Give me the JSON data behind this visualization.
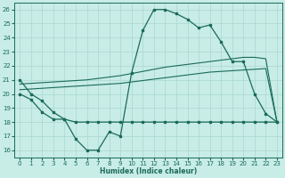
{
  "xlabel": "Humidex (Indice chaleur)",
  "xlim": [
    -0.5,
    23.5
  ],
  "ylim": [
    15.5,
    26.5
  ],
  "xticks": [
    0,
    1,
    2,
    3,
    4,
    5,
    6,
    7,
    8,
    9,
    10,
    11,
    12,
    13,
    14,
    15,
    16,
    17,
    18,
    19,
    20,
    21,
    22,
    23
  ],
  "yticks": [
    16,
    17,
    18,
    19,
    20,
    21,
    22,
    23,
    24,
    25,
    26
  ],
  "bg_color": "#c8ece6",
  "line_color": "#1a6b5a",
  "grid_color": "#a8d8d0",
  "line1_x": [
    0,
    1,
    2,
    3,
    4,
    5,
    6,
    7,
    8,
    9,
    10,
    11,
    12,
    13,
    14,
    15,
    16,
    17,
    18,
    19,
    20,
    21,
    22,
    23
  ],
  "line1_y": [
    21.0,
    20.0,
    19.5,
    18.7,
    18.2,
    16.8,
    16.0,
    16.0,
    17.3,
    17.0,
    21.5,
    24.5,
    26.0,
    26.0,
    25.7,
    25.3,
    24.7,
    24.9,
    23.7,
    22.3,
    22.3,
    20.0,
    18.6,
    18.0
  ],
  "line2_x": [
    0,
    1,
    2,
    3,
    4,
    5,
    6,
    7,
    8,
    9,
    10,
    11,
    12,
    13,
    14,
    15,
    16,
    17,
    18,
    19,
    20,
    21,
    22,
    23
  ],
  "line2_y": [
    20.0,
    19.6,
    18.7,
    18.2,
    18.2,
    18.0,
    18.0,
    18.0,
    18.0,
    18.0,
    18.0,
    18.0,
    18.0,
    18.0,
    18.0,
    18.0,
    18.0,
    18.0,
    18.0,
    18.0,
    18.0,
    18.0,
    18.0,
    18.0
  ],
  "line3_x": [
    0,
    1,
    2,
    3,
    4,
    5,
    6,
    7,
    8,
    9,
    10,
    11,
    12,
    13,
    14,
    15,
    16,
    17,
    18,
    19,
    20,
    21,
    22,
    23
  ],
  "line3_y": [
    20.3,
    20.35,
    20.4,
    20.45,
    20.5,
    20.55,
    20.6,
    20.65,
    20.7,
    20.75,
    20.85,
    20.95,
    21.05,
    21.15,
    21.25,
    21.35,
    21.45,
    21.55,
    21.6,
    21.65,
    21.7,
    21.75,
    21.8,
    18.0
  ],
  "line4_x": [
    0,
    1,
    2,
    3,
    4,
    5,
    6,
    7,
    8,
    9,
    10,
    11,
    12,
    13,
    14,
    15,
    16,
    17,
    18,
    19,
    20,
    21,
    22,
    23
  ],
  "line4_y": [
    20.7,
    20.75,
    20.8,
    20.85,
    20.9,
    20.95,
    21.0,
    21.1,
    21.2,
    21.3,
    21.45,
    21.6,
    21.75,
    21.9,
    22.0,
    22.1,
    22.2,
    22.3,
    22.4,
    22.5,
    22.6,
    22.6,
    22.5,
    18.0
  ]
}
